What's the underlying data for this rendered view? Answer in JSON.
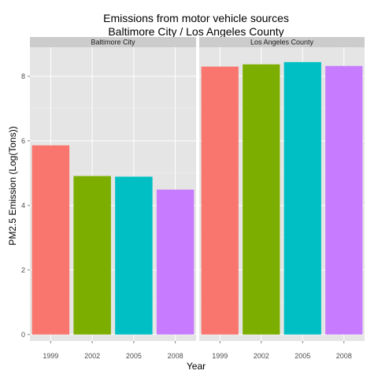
{
  "chart_data": {
    "type": "bar",
    "title": "Emissions from motor vehicle sources",
    "subtitle": "Baltimore City / Los Angeles County",
    "xlabel": "Year",
    "ylabel": "PM2.5 Emission (Log(Tons))",
    "ylim": [
      -0.2,
      8.9
    ],
    "yticks": [
      "0",
      "2",
      "4",
      "6",
      "8"
    ],
    "categories": [
      "1999",
      "2002",
      "2005",
      "2008"
    ],
    "colors": [
      "#F8766D",
      "#7CAE00",
      "#00BFC4",
      "#C77CFF"
    ],
    "grid": true,
    "panels": [
      {
        "name": "Baltimore City",
        "values": [
          5.86,
          4.91,
          4.89,
          4.49
        ]
      },
      {
        "name": "Los Angeles County",
        "values": [
          8.3,
          8.37,
          8.44,
          8.32
        ]
      }
    ]
  }
}
